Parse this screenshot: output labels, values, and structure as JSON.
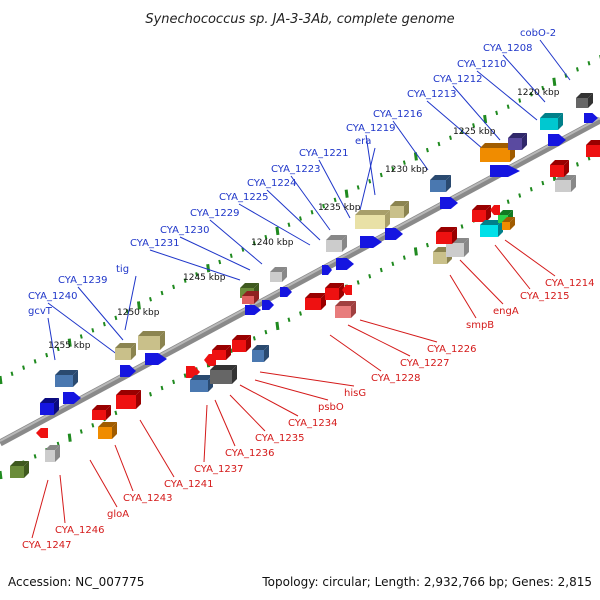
{
  "title": "Synechococcus sp. JA-3-3Ab, complete genome",
  "footer": {
    "accession": "Accession: NC_007775",
    "summary": "Topology: circular; Length: 2,932,766 bp; Genes: 2,815"
  },
  "colors": {
    "backbone": "#8a8a8a",
    "tick": "#1f8a1f",
    "label_top": "#1f36c9",
    "label_bottom": "#d41a1a"
  },
  "scale_labels": [
    "1220 kbp",
    "1225 kbp",
    "1230 kbp",
    "1235 kbp",
    "1240 kbp",
    "1245 kbp",
    "1250 kbp",
    "1255 kbp"
  ],
  "top_gene_labels": [
    "cobO-2",
    "CYA_1208",
    "CYA_1210",
    "CYA_1212",
    "CYA_1213",
    "CYA_1216",
    "CYA_1219",
    "era",
    "CYA_1221",
    "CYA_1223",
    "CYA_1224",
    "CYA_1225",
    "CYA_1229",
    "CYA_1230",
    "CYA_1231",
    "tig",
    "CYA_1239",
    "CYA_1240",
    "gcvT"
  ],
  "bottom_gene_labels": [
    "CYA_1214",
    "CYA_1215",
    "engA",
    "smpB",
    "CYA_1226",
    "CYA_1227",
    "CYA_1228",
    "hisG",
    "psbO",
    "CYA_1234",
    "CYA_1235",
    "CYA_1236",
    "CYA_1237",
    "CYA_1241",
    "CYA_1243",
    "gloA",
    "CYA_1246",
    "CYA_1247"
  ]
}
